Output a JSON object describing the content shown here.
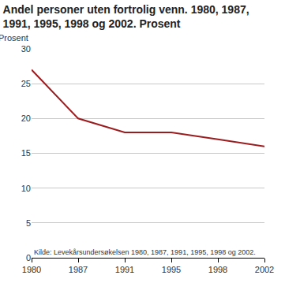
{
  "chart_data": {
    "type": "line",
    "title": "Andel personer uten fortrolig venn. 1980, 1987,\n1991, 1995, 1998 og 2002. Prosent",
    "y_label": "Prosent",
    "source": "Kilde: Levekårsundersøkelsen 1980, 1987, 1991, 1995, 1998 og 2002.",
    "categories": [
      "1980",
      "1987",
      "1991",
      "1995",
      "1998",
      "2002"
    ],
    "values": [
      27,
      20,
      18,
      18,
      17,
      16
    ],
    "color": "#9b1c1f",
    "ylim": [
      0,
      30
    ],
    "yticks": [
      0,
      5,
      10,
      15,
      20,
      25,
      30
    ],
    "grid": true
  }
}
